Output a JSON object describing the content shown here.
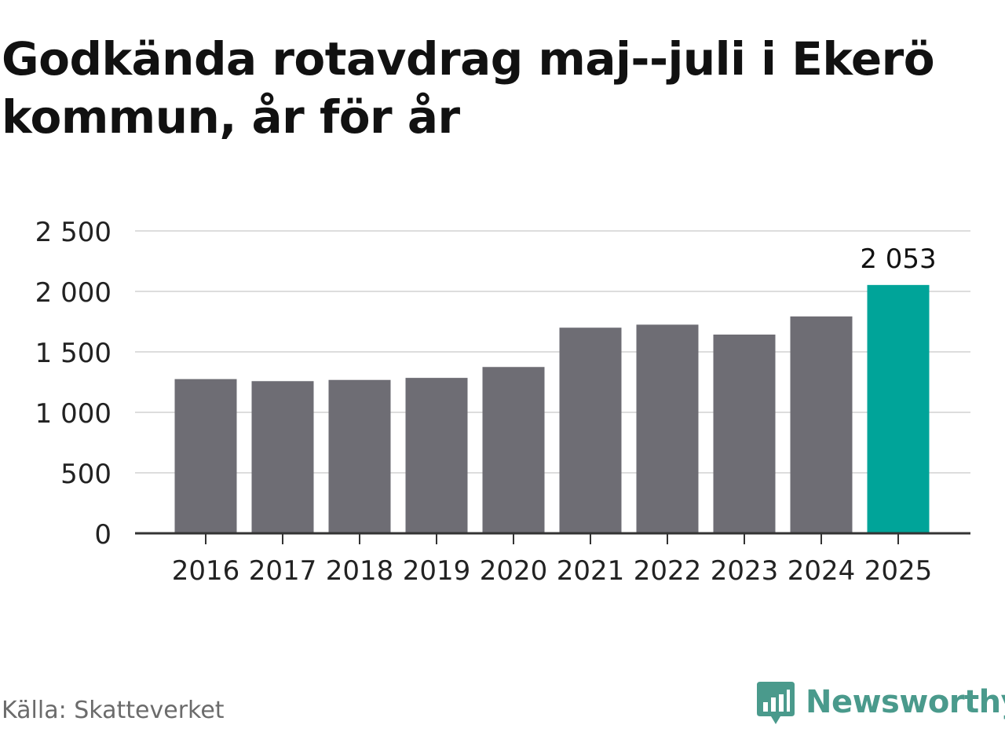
{
  "title": "Godkända rotavdrag maj--juli i Ekerö kommun, år för år",
  "source": "Källa: Skatteverket",
  "brand": "Newsworthy",
  "colors": {
    "bar": "#6e6d74",
    "highlight": "#00a499",
    "grid": "#dddddd",
    "axis": "#333333",
    "text": "#222222",
    "brand": "#4a9a8c"
  },
  "chart_data": {
    "type": "bar",
    "title": "Godkända rotavdrag maj--juli i Ekerö kommun, år för år",
    "xlabel": "",
    "ylabel": "",
    "categories": [
      "2016",
      "2017",
      "2018",
      "2019",
      "2020",
      "2021",
      "2022",
      "2023",
      "2024",
      "2025"
    ],
    "values": [
      1275,
      1258,
      1268,
      1285,
      1375,
      1700,
      1725,
      1643,
      1793,
      2053
    ],
    "highlight_index": 9,
    "highlight_label": "2 053",
    "ylim": [
      0,
      2500
    ],
    "yticks": [
      0,
      500,
      1000,
      1500,
      2000,
      2500
    ],
    "ytick_labels": [
      "0",
      "500",
      "1 000",
      "1 500",
      "2 000",
      "2 500"
    ],
    "grid": true,
    "legend": "none"
  }
}
